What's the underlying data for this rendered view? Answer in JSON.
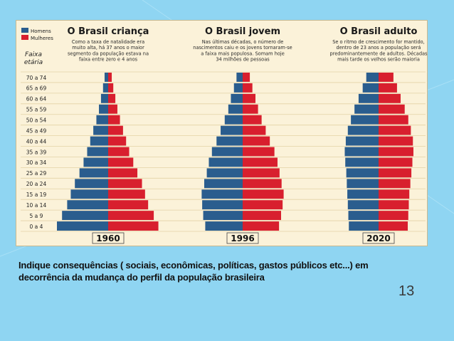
{
  "slide": {
    "caption": "Indique consequências ( sociais, econômicas, políticas, gastos públicos  etc...)  em decorrência da mudança do perfil da população brasileira",
    "number": "13",
    "colors": {
      "background": "#8fd5f2",
      "figure": "#fbf2d9",
      "men": "#2a5d8e",
      "women": "#d81f2e"
    }
  },
  "legend": {
    "men": "Homens",
    "women": "Mulheres",
    "age_title_1": "Faixa",
    "age_title_2": "etária"
  },
  "chart_data": {
    "type": "bar",
    "orientation": "population-pyramid",
    "categories": [
      "0 a 4",
      "5 a 9",
      "10 a 14",
      "15 a 19",
      "20 a 24",
      "25 a 29",
      "30 a 34",
      "35 a 39",
      "40 a 44",
      "45 a 49",
      "50 a 54",
      "55 a 59",
      "60 a 64",
      "65 a 69",
      "70 a 74"
    ],
    "panels": [
      {
        "title": "O Brasil criança",
        "note": [
          "Como a taxa de natalidade era",
          "muito alta, há 37 anos o maior",
          "segmento da população estava na",
          "faixa entre zero e 4 anos"
        ],
        "year": "1960",
        "series": [
          {
            "name": "Homens",
            "values": [
              10.0,
              9.0,
              8.0,
              7.3,
              6.5,
              5.6,
              4.8,
              4.1,
              3.5,
              2.9,
              2.3,
              1.8,
              1.4,
              1.0,
              0.7
            ]
          },
          {
            "name": "Mulheres",
            "values": [
              9.8,
              8.9,
              7.8,
              7.2,
              6.6,
              5.7,
              4.9,
              4.1,
              3.5,
              2.9,
              2.3,
              1.8,
              1.4,
              1.0,
              0.7
            ]
          }
        ]
      },
      {
        "title": "O Brasil jovem",
        "note": [
          "Nas últimas décadas, o número de",
          "nascimentos caiu e os jovens tornaram-se",
          "a faixa mais populosa. Somam hoje",
          "34 milhões de pessoas"
        ],
        "year": "1996",
        "series": [
          {
            "name": "Homens",
            "values": [
              7.3,
              7.7,
              7.9,
              8.0,
              7.5,
              7.0,
              6.6,
              6.0,
              5.1,
              4.3,
              3.5,
              2.8,
              2.3,
              1.7,
              1.2
            ]
          },
          {
            "name": "Mulheres",
            "values": [
              7.1,
              7.5,
              7.8,
              8.0,
              7.6,
              7.2,
              6.8,
              6.2,
              5.3,
              4.5,
              3.7,
              3.0,
              2.5,
              1.9,
              1.4
            ]
          }
        ]
      },
      {
        "title": "O Brasil adulto",
        "note": [
          "Se o ritmo de crescimento for mantido,",
          "dentro de 23 anos a população será",
          "predominantemente de adultos. Décadas",
          "mais tarde os velhos serão maioria"
        ],
        "year": "2020",
        "series": [
          {
            "name": "Homens",
            "values": [
              5.8,
              5.9,
              6.0,
              6.1,
              6.2,
              6.3,
              6.5,
              6.6,
              6.4,
              6.0,
              5.4,
              4.7,
              3.9,
              3.1,
              2.4
            ]
          },
          {
            "name": "Mulheres",
            "values": [
              5.7,
              5.8,
              5.9,
              6.0,
              6.2,
              6.4,
              6.6,
              6.8,
              6.7,
              6.3,
              5.8,
              5.1,
              4.3,
              3.6,
              2.9
            ]
          }
        ]
      }
    ],
    "grid": true,
    "legend": "top-left"
  }
}
